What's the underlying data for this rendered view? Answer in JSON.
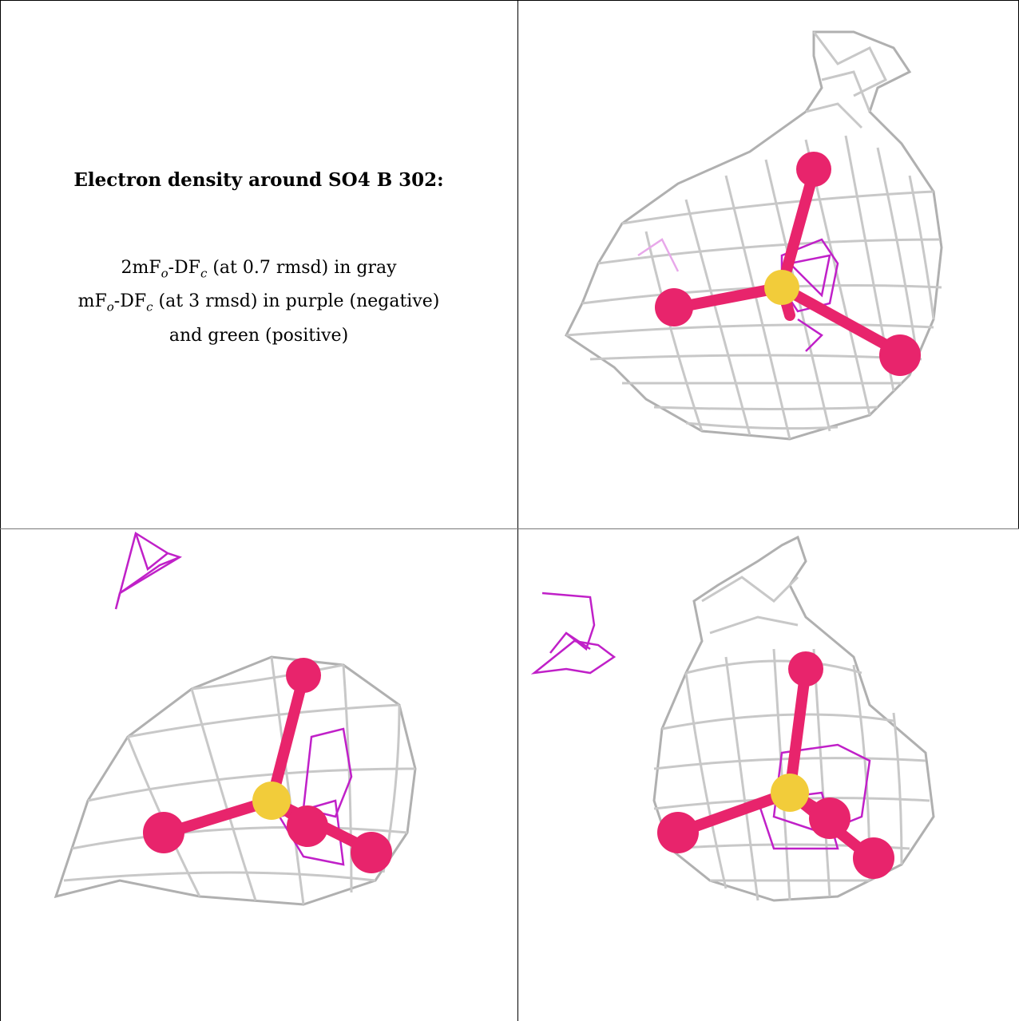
{
  "figure": {
    "title": "Electron density around SO4 B 302:",
    "line1": {
      "prefix": "2mF",
      "sub1": "o",
      "mid": "-DF",
      "sub2": "c",
      "suffix": " (at 0.7 rmsd) in gray"
    },
    "line2": {
      "prefix": "mF",
      "sub1": "o",
      "mid": "-DF",
      "sub2": "c",
      "suffix": " (at 3 rmsd) in purple (negative)"
    },
    "line3": "and green (positive)"
  },
  "colors": {
    "mesh_gray": "#c8c8c8",
    "mesh_gray_dark": "#9a9a9a",
    "mesh_purple": "#c020c8",
    "oxygen": "#e8246c",
    "sulfur": "#f2cc3a"
  },
  "views": [
    {
      "name": "top-right-view",
      "icon": "so4-density-view"
    },
    {
      "name": "bottom-left-view",
      "icon": "so4-density-view"
    },
    {
      "name": "bottom-right-view",
      "icon": "so4-density-view"
    }
  ]
}
